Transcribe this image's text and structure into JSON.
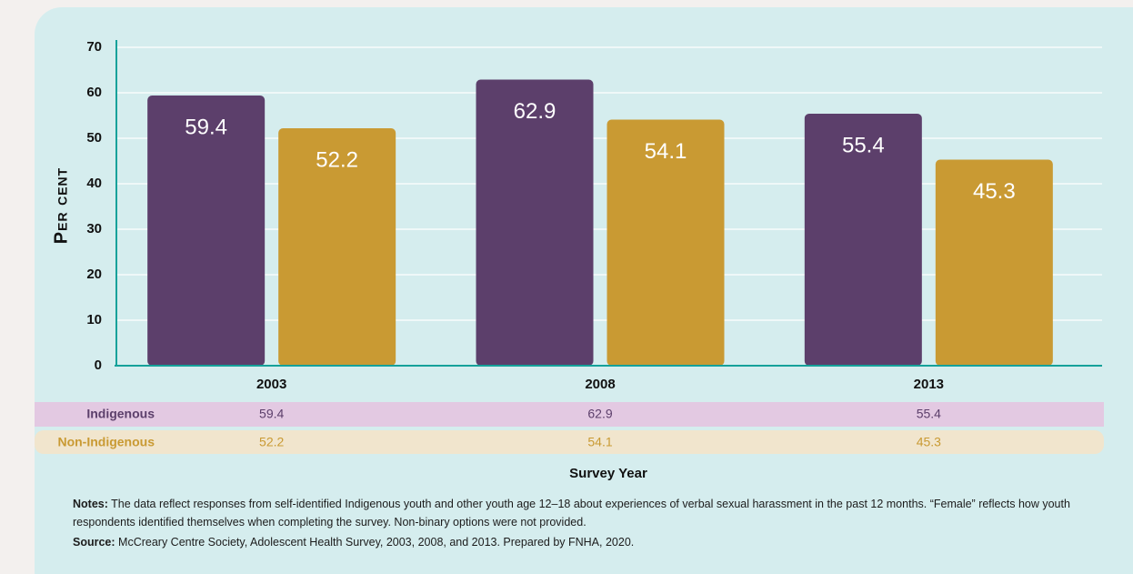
{
  "chart_data": {
    "type": "bar",
    "y_label": "Per cent",
    "x_label": "Survey Year",
    "categories": [
      "2003",
      "2008",
      "2013"
    ],
    "series": [
      {
        "name": "Indigenous",
        "color": "#5c3f6b",
        "values": [
          59.4,
          62.9,
          55.4
        ]
      },
      {
        "name": "Non-Indigenous",
        "color": "#c99a33",
        "values": [
          52.2,
          54.1,
          45.3
        ]
      }
    ],
    "ylim": [
      0,
      70
    ],
    "yticks": [
      0,
      10,
      20,
      30,
      40,
      50,
      60,
      70
    ],
    "grid": true
  },
  "notes": {
    "label": "Notes:",
    "text": "The data reflect responses from self-identified Indigenous youth and other youth age 12–18 about experiences of verbal sexual harassment in the past 12 months. “Female” reflects how youth respondents identified themselves when completing the survey. Non-binary options were not provided."
  },
  "source": {
    "label": "Source:",
    "text": "McCreary Centre Society, Adolescent Health Survey, 2003, 2008, and 2013. Prepared by FNHA, 2020."
  }
}
